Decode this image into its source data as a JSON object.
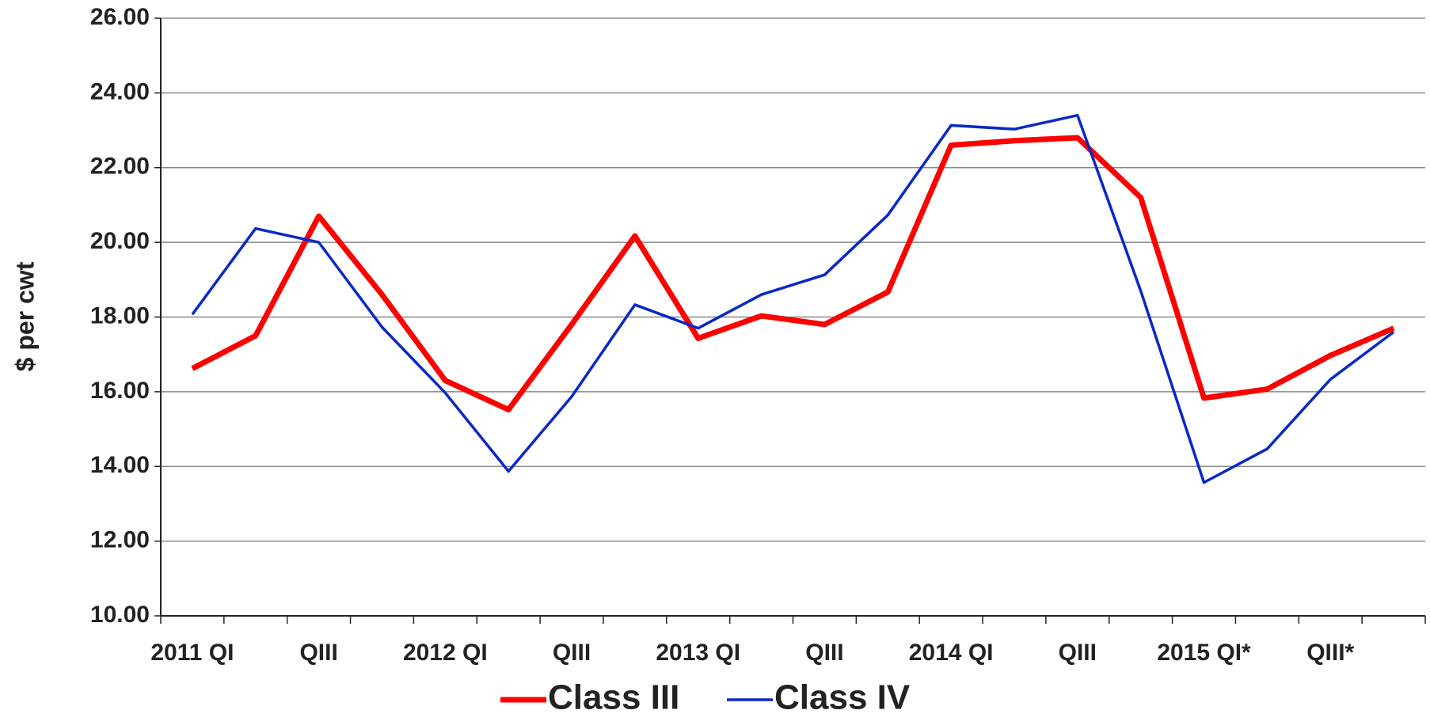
{
  "chart_data": {
    "type": "line",
    "y_label": "$ per cwt",
    "categories": [
      "2011 QI",
      null,
      "QIII",
      null,
      "2012 QI",
      null,
      "QIII",
      null,
      "2013 QI",
      null,
      "QIII",
      null,
      "2014 QI",
      null,
      "QIII",
      null,
      "2015 QI*",
      null,
      "QIII*",
      null
    ],
    "series": [
      {
        "name": "Class III",
        "color": "#ff0000",
        "width": 7,
        "values": [
          16.62,
          17.5,
          20.7,
          18.6,
          16.3,
          15.52,
          17.8,
          20.17,
          17.43,
          18.03,
          17.8,
          18.67,
          22.6,
          22.72,
          22.8,
          21.2,
          15.83,
          16.07,
          16.97,
          17.7
        ]
      },
      {
        "name": "Class IV",
        "color": "#0a28c8",
        "width": 3.5,
        "values": [
          18.07,
          20.37,
          20.0,
          17.73,
          15.97,
          13.87,
          15.87,
          18.33,
          17.7,
          18.6,
          19.13,
          20.73,
          23.13,
          23.03,
          23.4,
          18.7,
          13.57,
          14.47,
          16.33,
          17.6
        ]
      }
    ],
    "ylim": [
      10,
      26
    ],
    "yticks": [
      {
        "value": 10,
        "label": "10.00"
      },
      {
        "value": 12,
        "label": "12.00"
      },
      {
        "value": 14,
        "label": "14.00"
      },
      {
        "value": 16,
        "label": "16.00"
      },
      {
        "value": 18,
        "label": "18.00"
      },
      {
        "value": 20,
        "label": "20.00"
      },
      {
        "value": 22,
        "label": "22.00"
      },
      {
        "value": 24,
        "label": "24.00"
      },
      {
        "value": 26,
        "label": "26.00"
      }
    ],
    "grid": true,
    "legend": "bottom"
  }
}
